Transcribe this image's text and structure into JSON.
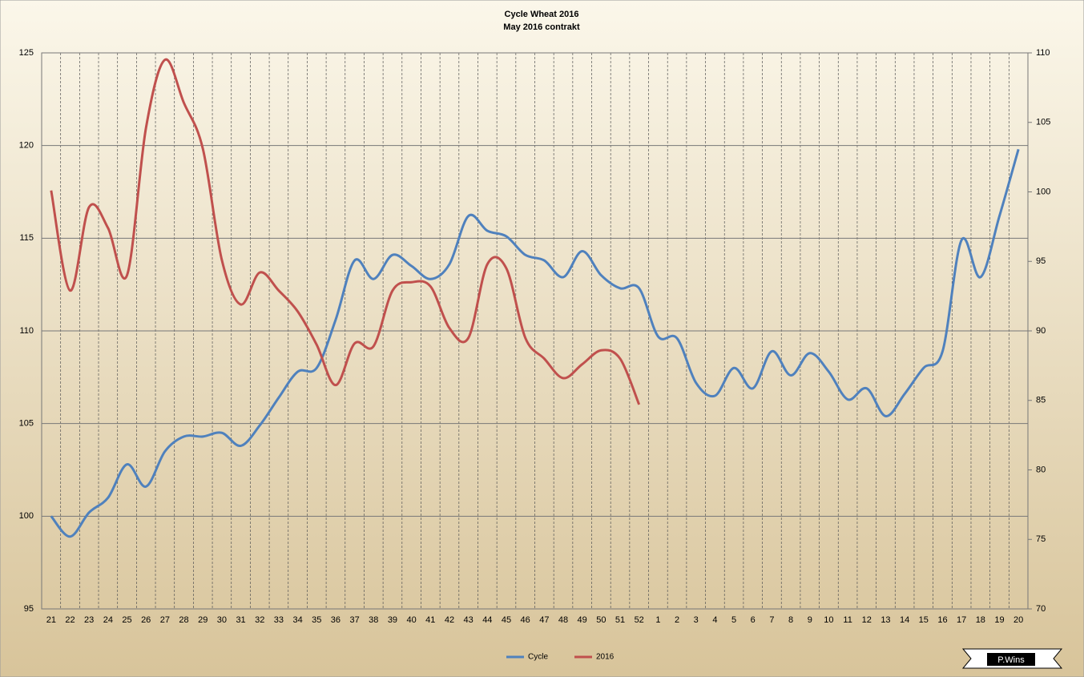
{
  "chart_data": {
    "type": "line",
    "title": "Cycle Wheat 2016",
    "subtitle": "May 2016 contrakt",
    "categories": [
      "21",
      "22",
      "23",
      "24",
      "25",
      "26",
      "27",
      "28",
      "29",
      "30",
      "31",
      "32",
      "33",
      "34",
      "35",
      "36",
      "37",
      "38",
      "39",
      "40",
      "41",
      "42",
      "43",
      "44",
      "45",
      "46",
      "47",
      "48",
      "49",
      "50",
      "51",
      "52",
      "1",
      "2",
      "3",
      "4",
      "5",
      "6",
      "7",
      "8",
      "9",
      "10",
      "11",
      "12",
      "13",
      "14",
      "15",
      "16",
      "17",
      "18",
      "19",
      "20"
    ],
    "series": [
      {
        "name": "Cycle",
        "color": "#4f81bd",
        "axis": "y",
        "values": [
          100.0,
          98.9,
          100.2,
          101.0,
          102.8,
          101.6,
          103.5,
          104.3,
          104.3,
          104.5,
          103.8,
          104.9,
          106.4,
          107.8,
          108.0,
          110.6,
          113.8,
          112.8,
          114.1,
          113.5,
          112.8,
          113.6,
          116.2,
          115.4,
          115.1,
          114.1,
          113.8,
          112.9,
          114.3,
          113.0,
          112.3,
          112.3,
          109.7,
          109.6,
          107.2,
          106.5,
          108.0,
          106.9,
          108.9,
          107.6,
          108.8,
          107.8,
          106.3,
          106.9,
          105.4,
          106.6,
          108.0,
          108.9,
          114.9,
          112.9,
          116.2,
          119.8
        ]
      },
      {
        "name": "2016",
        "color": "#c0504d",
        "axis": "y2",
        "values": [
          100.1,
          92.9,
          98.9,
          97.4,
          94.0,
          104.6,
          109.5,
          106.4,
          103.1,
          95.1,
          91.9,
          94.2,
          92.9,
          91.4,
          89.0,
          86.1,
          89.1,
          88.9,
          92.9,
          93.5,
          93.2,
          90.2,
          89.5,
          94.8,
          94.5,
          89.5,
          88.0,
          86.6,
          87.6,
          88.6,
          88.0,
          84.7,
          null,
          null,
          null,
          null,
          null,
          null,
          null,
          null,
          null,
          null,
          null,
          null,
          null,
          null,
          null,
          null,
          null,
          null,
          null,
          null
        ]
      }
    ],
    "ylim": [
      95,
      125
    ],
    "yticks": [
      95,
      100,
      105,
      110,
      115,
      120,
      125
    ],
    "y2lim": [
      70,
      110
    ],
    "y2ticks": [
      70,
      75,
      80,
      85,
      90,
      95,
      100,
      105,
      110
    ],
    "grid": true,
    "smooth": true,
    "legend": "bottom",
    "watermark": "P.Wins"
  }
}
